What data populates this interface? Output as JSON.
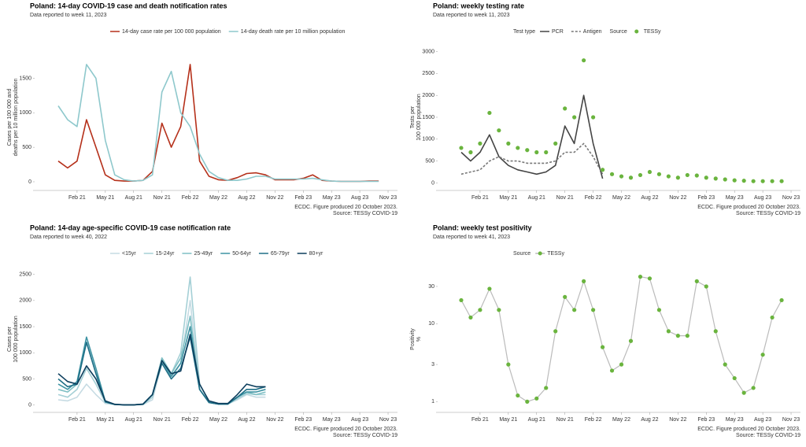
{
  "chart_data": [
    {
      "type": "line",
      "title": "Poland: 14-day COVID-19 case and death notification rates",
      "subtitle": "Data reported to week 11, 2023",
      "ylabel": [
        "Cases per 100 000 and",
        "deaths per 10 million population"
      ],
      "caption": [
        "ECDC. Figure produced 20 October 2023.",
        "Source: TESSy COVID-19"
      ],
      "x": [
        "2020-12",
        "2021-01",
        "2021-02",
        "2021-03",
        "2021-04",
        "2021-05",
        "2021-06",
        "2021-07",
        "2021-08",
        "2021-09",
        "2021-10",
        "2021-11",
        "2021-12",
        "2022-01",
        "2022-02",
        "2022-03",
        "2022-04",
        "2022-05",
        "2022-06",
        "2022-07",
        "2022-08",
        "2022-09",
        "2022-10",
        "2022-11",
        "2022-12",
        "2023-01",
        "2023-02",
        "2023-03",
        "2023-04",
        "2023-05",
        "2023-06",
        "2023-07",
        "2023-08",
        "2023-09",
        "2023-10"
      ],
      "xlim": [
        "2020-11",
        "2023-12"
      ],
      "xticks": [
        {
          "value": "2021-02",
          "label": "Feb 21"
        },
        {
          "value": "2021-05",
          "label": "May 21"
        },
        {
          "value": "2021-08",
          "label": "Aug 21"
        },
        {
          "value": "2021-11",
          "label": "Nov 21"
        },
        {
          "value": "2022-02",
          "label": "Feb 22"
        },
        {
          "value": "2022-05",
          "label": "May 22"
        },
        {
          "value": "2022-08",
          "label": "Aug 22"
        },
        {
          "value": "2022-11",
          "label": "Nov 22"
        },
        {
          "value": "2023-02",
          "label": "Feb 23"
        },
        {
          "value": "2023-05",
          "label": "May 23"
        },
        {
          "value": "2023-08",
          "label": "Aug 23"
        },
        {
          "value": "2023-11",
          "label": "Nov 23"
        }
      ],
      "ylim": [
        -80,
        1950
      ],
      "yticks": [
        0,
        500,
        1000,
        1500
      ],
      "log": false,
      "series": [
        {
          "name": "14-day case rate per 100 000 population",
          "color": "#b5301a",
          "style": "line",
          "values": [
            300,
            200,
            300,
            900,
            500,
            100,
            20,
            10,
            10,
            20,
            150,
            850,
            500,
            800,
            1700,
            300,
            80,
            30,
            20,
            60,
            120,
            130,
            100,
            30,
            30,
            30,
            50,
            100,
            20,
            10,
            5,
            5,
            5,
            10,
            10
          ]
        },
        {
          "name": "14-day death rate per 10 million population",
          "color": "#8ec8cc",
          "style": "line",
          "values": [
            1100,
            900,
            800,
            1700,
            1500,
            600,
            100,
            30,
            10,
            20,
            100,
            1300,
            1600,
            1000,
            800,
            400,
            150,
            60,
            20,
            20,
            40,
            80,
            80,
            40,
            40,
            40,
            40,
            50,
            30,
            10,
            5,
            5,
            5,
            5,
            5
          ]
        }
      ]
    },
    {
      "type": "line",
      "title": "Poland: weekly testing rate",
      "subtitle": "Data reported to week 11, 2023",
      "ylabel": [
        "Tests per",
        "100 000 population"
      ],
      "caption": [
        "ECDC. Figure produced 20 October 2023.",
        "Source: TESSy COVID-19"
      ],
      "x": [
        "2020-12",
        "2021-01",
        "2021-02",
        "2021-03",
        "2021-04",
        "2021-05",
        "2021-06",
        "2021-07",
        "2021-08",
        "2021-09",
        "2021-10",
        "2021-11",
        "2021-12",
        "2022-01",
        "2022-02",
        "2022-03",
        "2022-04",
        "2022-05",
        "2022-06",
        "2022-07",
        "2022-08",
        "2022-09",
        "2022-10",
        "2022-11",
        "2022-12",
        "2023-01",
        "2023-02",
        "2023-03",
        "2023-04",
        "2023-05",
        "2023-06",
        "2023-07",
        "2023-08",
        "2023-09",
        "2023-10"
      ],
      "xlim": [
        "2020-11",
        "2023-12"
      ],
      "xticks": [
        {
          "value": "2021-02",
          "label": "Feb 21"
        },
        {
          "value": "2021-05",
          "label": "May 21"
        },
        {
          "value": "2021-08",
          "label": "Aug 21"
        },
        {
          "value": "2021-11",
          "label": "Nov 21"
        },
        {
          "value": "2022-02",
          "label": "Feb 22"
        },
        {
          "value": "2022-05",
          "label": "May 22"
        },
        {
          "value": "2022-08",
          "label": "Aug 22"
        },
        {
          "value": "2022-11",
          "label": "Nov 22"
        },
        {
          "value": "2023-02",
          "label": "Feb 23"
        },
        {
          "value": "2023-05",
          "label": "May 23"
        },
        {
          "value": "2023-08",
          "label": "Aug 23"
        },
        {
          "value": "2023-11",
          "label": "Nov 23"
        }
      ],
      "ylim": [
        -100,
        3100
      ],
      "yticks": [
        0,
        500,
        1000,
        1500,
        2000,
        2500,
        3000
      ],
      "log": false,
      "series": [
        {
          "name": "PCR",
          "legend_title": "Test type",
          "color": "#444444",
          "style": "line",
          "values": [
            700,
            500,
            700,
            1100,
            600,
            400,
            300,
            250,
            200,
            250,
            400,
            1300,
            900,
            2000,
            900,
            100,
            null,
            null,
            null,
            null,
            null,
            null,
            null,
            null,
            null,
            null,
            null,
            null,
            null,
            null,
            null,
            null,
            null,
            null,
            null
          ]
        },
        {
          "name": "Antigen",
          "color": "#777777",
          "style": "line",
          "dash": true,
          "values": [
            200,
            250,
            300,
            500,
            600,
            500,
            500,
            450,
            450,
            450,
            500,
            700,
            700,
            900,
            600,
            200,
            null,
            null,
            null,
            null,
            null,
            null,
            null,
            null,
            null,
            null,
            null,
            null,
            null,
            null,
            null,
            null,
            null,
            null,
            null
          ]
        },
        {
          "name": "TESSy",
          "legend_title": "Source",
          "color": "#6ab43e",
          "style": "points",
          "values": [
            800,
            700,
            900,
            1600,
            1200,
            900,
            800,
            750,
            700,
            700,
            900,
            1700,
            1500,
            2800,
            1500,
            300,
            200,
            150,
            120,
            180,
            250,
            200,
            150,
            120,
            180,
            170,
            120,
            100,
            80,
            60,
            50,
            40,
            40,
            40,
            40
          ]
        }
      ]
    },
    {
      "type": "line",
      "title": "Poland: 14-day age-specific COVID-19 case notification rate",
      "subtitle": "Data reported to week 40, 2022",
      "ylabel": [
        "Cases per",
        "100 000 population"
      ],
      "caption": [
        "ECDC. Figure produced 20 October 2023.",
        "Source: TESSy COVID-19"
      ],
      "x": [
        "2020-12",
        "2021-01",
        "2021-02",
        "2021-03",
        "2021-04",
        "2021-05",
        "2021-06",
        "2021-07",
        "2021-08",
        "2021-09",
        "2021-10",
        "2021-11",
        "2021-12",
        "2022-01",
        "2022-02",
        "2022-03",
        "2022-04",
        "2022-05",
        "2022-06",
        "2022-07",
        "2022-08",
        "2022-09",
        "2022-10"
      ],
      "xlim": [
        "2020-11",
        "2023-12"
      ],
      "xticks": [
        {
          "value": "2021-02",
          "label": "Feb 21"
        },
        {
          "value": "2021-05",
          "label": "May 21"
        },
        {
          "value": "2021-08",
          "label": "Aug 21"
        },
        {
          "value": "2021-11",
          "label": "Nov 21"
        },
        {
          "value": "2022-02",
          "label": "Feb 22"
        },
        {
          "value": "2022-05",
          "label": "May 22"
        },
        {
          "value": "2022-08",
          "label": "Aug 22"
        },
        {
          "value": "2022-11",
          "label": "Nov 22"
        },
        {
          "value": "2023-02",
          "label": "Feb 23"
        },
        {
          "value": "2023-05",
          "label": "May 23"
        },
        {
          "value": "2023-08",
          "label": "Aug 23"
        },
        {
          "value": "2023-11",
          "label": "Nov 23"
        }
      ],
      "ylim": [
        -80,
        2600
      ],
      "yticks": [
        0,
        500,
        1000,
        1500,
        2000,
        2500
      ],
      "log": false,
      "series": [
        {
          "name": "<15yr",
          "color": "#c6dbe3",
          "style": "line",
          "values": [
            100,
            80,
            150,
            400,
            200,
            30,
            10,
            5,
            5,
            10,
            100,
            800,
            500,
            800,
            2000,
            300,
            50,
            20,
            20,
            100,
            200,
            150,
            150
          ]
        },
        {
          "name": "15-24yr",
          "color": "#a5d0d6",
          "style": "line",
          "values": [
            200,
            150,
            300,
            700,
            400,
            50,
            10,
            5,
            5,
            10,
            150,
            900,
            600,
            1000,
            2450,
            400,
            60,
            20,
            20,
            120,
            220,
            200,
            200
          ]
        },
        {
          "name": "25-49yr",
          "color": "#7fbfc4",
          "style": "line",
          "values": [
            300,
            250,
            400,
            1200,
            600,
            60,
            10,
            5,
            5,
            15,
            200,
            900,
            600,
            900,
            1700,
            300,
            50,
            20,
            20,
            150,
            250,
            200,
            250
          ]
        },
        {
          "name": "50-64yr",
          "color": "#3e93a3",
          "style": "line",
          "values": [
            400,
            300,
            450,
            1300,
            700,
            70,
            10,
            5,
            5,
            15,
            200,
            850,
            550,
            800,
            1500,
            300,
            50,
            20,
            20,
            150,
            250,
            250,
            300
          ]
        },
        {
          "name": "65-79yr",
          "color": "#1f6f87",
          "style": "line",
          "values": [
            500,
            350,
            400,
            1200,
            600,
            60,
            10,
            5,
            5,
            15,
            200,
            800,
            500,
            700,
            1300,
            300,
            50,
            20,
            20,
            150,
            300,
            300,
            350
          ]
        },
        {
          "name": "80+yr",
          "color": "#0b3d5c",
          "style": "line",
          "values": [
            600,
            450,
            400,
            750,
            500,
            80,
            15,
            5,
            5,
            20,
            200,
            850,
            600,
            650,
            1350,
            400,
            80,
            30,
            30,
            200,
            400,
            350,
            350
          ]
        }
      ]
    },
    {
      "type": "line",
      "title": "Poland: weekly test positivity",
      "subtitle": "Data reported to week 41, 2023",
      "ylabel": [
        "Positivity",
        "%"
      ],
      "caption": [
        "ECDC. Figure produced 20 October 2023.",
        "Source: TESSy COVID-19"
      ],
      "x": [
        "2020-12",
        "2021-01",
        "2021-02",
        "2021-03",
        "2021-04",
        "2021-05",
        "2021-06",
        "2021-07",
        "2021-08",
        "2021-09",
        "2021-10",
        "2021-11",
        "2021-12",
        "2022-01",
        "2022-02",
        "2022-03",
        "2022-04",
        "2022-05",
        "2022-06",
        "2022-07",
        "2022-08",
        "2022-09",
        "2022-10",
        "2022-11",
        "2022-12",
        "2023-01",
        "2023-02",
        "2023-03",
        "2023-04",
        "2023-05",
        "2023-06",
        "2023-07",
        "2023-08",
        "2023-09",
        "2023-10"
      ],
      "xlim": [
        "2020-11",
        "2023-12"
      ],
      "xticks": [
        {
          "value": "2021-02",
          "label": "Feb 21"
        },
        {
          "value": "2021-05",
          "label": "May 21"
        },
        {
          "value": "2021-08",
          "label": "Aug 21"
        },
        {
          "value": "2021-11",
          "label": "Nov 21"
        },
        {
          "value": "2022-02",
          "label": "Feb 22"
        },
        {
          "value": "2022-05",
          "label": "May 22"
        },
        {
          "value": "2022-08",
          "label": "Aug 22"
        },
        {
          "value": "2022-11",
          "label": "Nov 22"
        },
        {
          "value": "2023-02",
          "label": "Feb 23"
        },
        {
          "value": "2023-05",
          "label": "May 23"
        },
        {
          "value": "2023-08",
          "label": "Aug 23"
        },
        {
          "value": "2023-11",
          "label": "Nov 23"
        }
      ],
      "ylim": [
        0.8,
        50
      ],
      "yticks": [
        1,
        3,
        10,
        30
      ],
      "log": true,
      "series": [
        {
          "name": "TESSy",
          "legend_title": "Source",
          "color": "#6ab43e",
          "line_color": "#bbbbbb",
          "style": "line+points",
          "values": [
            20,
            12,
            15,
            28,
            15,
            3,
            1.2,
            1,
            1.1,
            1.5,
            8,
            22,
            15,
            35,
            15,
            5,
            2.5,
            3,
            6,
            40,
            38,
            15,
            8,
            7,
            7,
            35,
            30,
            8,
            3,
            2,
            1.3,
            1.5,
            4,
            12,
            20
          ]
        }
      ]
    }
  ]
}
